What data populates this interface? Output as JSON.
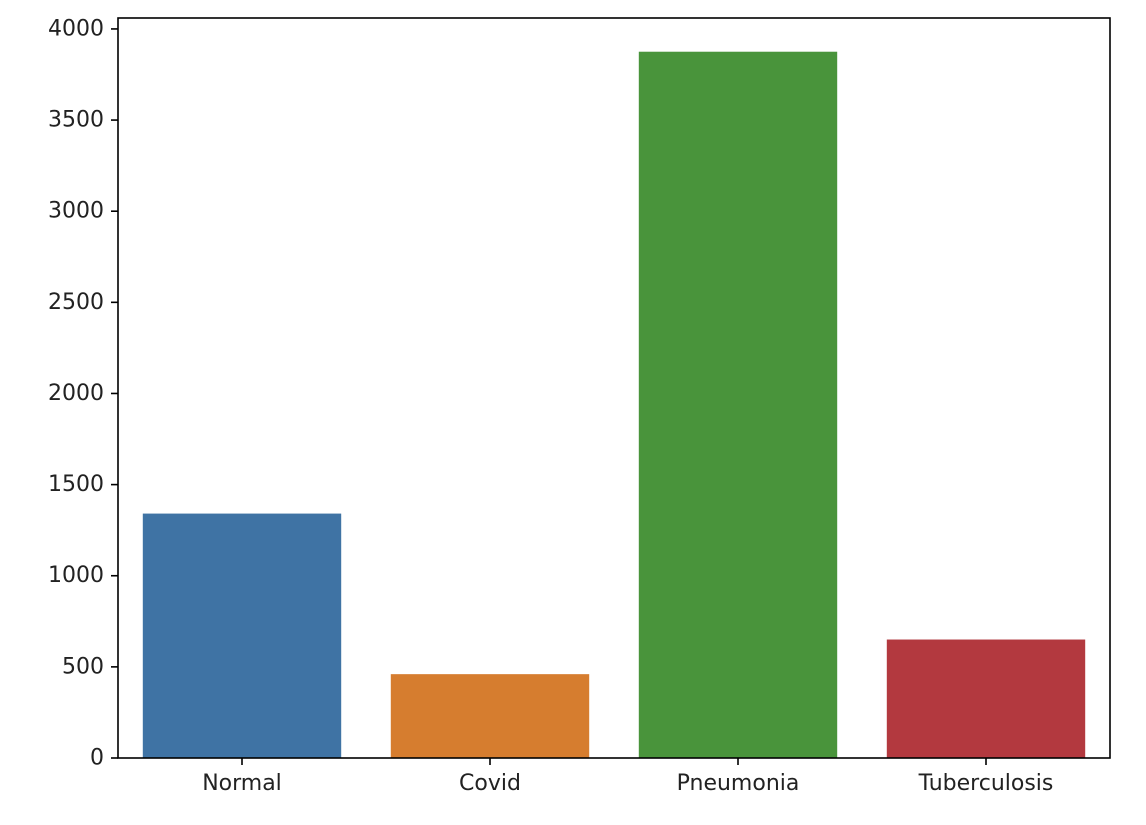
{
  "chart_data": {
    "type": "bar",
    "categories": [
      "Normal",
      "Covid",
      "Pneumonia",
      "Tuberculosis"
    ],
    "values": [
      1341,
      460,
      3875,
      650
    ],
    "colors": [
      "#3f73a4",
      "#d67d2f",
      "#49943b",
      "#b3393f"
    ],
    "ylim": [
      0,
      4060
    ],
    "yticks": [
      0,
      500,
      1000,
      1500,
      2000,
      2500,
      3000,
      3500,
      4000
    ],
    "title": "",
    "xlabel": "",
    "ylabel": "",
    "grid": false,
    "legend": false
  }
}
